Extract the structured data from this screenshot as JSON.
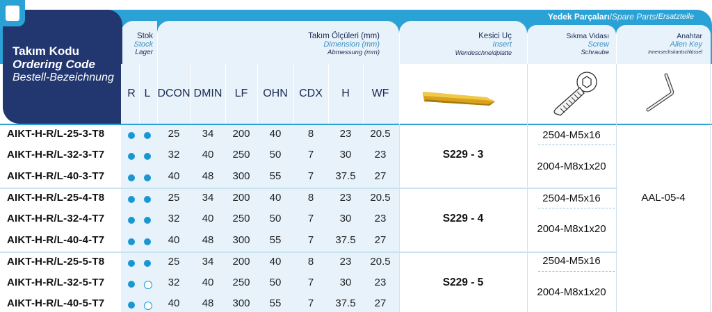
{
  "headers": {
    "code": {
      "tr": "Takım Kodu",
      "en": "Ordering Code",
      "de": "Bestell-Bezeichnung"
    },
    "stock": {
      "tr": "Stok",
      "en": "Stock",
      "de": "Lager"
    },
    "dimension": {
      "tr": "Takım Ölçüleri (mm)",
      "en": "Dimension (mm)",
      "de": "Abmessung (mm)"
    },
    "insert": {
      "tr": "Kesici Uç",
      "en": "Insert",
      "de": "Wendeschneidplatte"
    },
    "spare": {
      "tr": "Yedek Parçaları",
      "sep": " / ",
      "en": "Spare Parts",
      "sep2": " / ",
      "de": "Ersatzteile"
    },
    "screw": {
      "tr": "Sıkma Vidası",
      "en": "Screw",
      "de": "Schraube"
    },
    "key": {
      "tr": "Anahtar",
      "en": "Allen Key",
      "de": "Innensechskantschlüssel"
    }
  },
  "columns": {
    "r": "R",
    "l": "L",
    "dcon": "DCON",
    "dmin": "DMIN",
    "lf": "LF",
    "ohn": "OHN",
    "cdx": "CDX",
    "h": "H",
    "wf": "WF"
  },
  "rows": [
    {
      "code": "AIKT-H-R/L-25-3-T8",
      "r": "full",
      "l": "full",
      "dcon": "25",
      "dmin": "34",
      "lf": "200",
      "ohn": "40",
      "cdx": "8",
      "h": "23",
      "wf": "20.5"
    },
    {
      "code": "AIKT-H-R/L-32-3-T7",
      "r": "full",
      "l": "full",
      "dcon": "32",
      "dmin": "40",
      "lf": "250",
      "ohn": "50",
      "cdx": "7",
      "h": "30",
      "wf": "23"
    },
    {
      "code": "AIKT-H-R/L-40-3-T7",
      "r": "full",
      "l": "full",
      "dcon": "40",
      "dmin": "48",
      "lf": "300",
      "ohn": "55",
      "cdx": "7",
      "h": "37.5",
      "wf": "27"
    },
    {
      "code": "AIKT-H-R/L-25-4-T8",
      "r": "full",
      "l": "full",
      "dcon": "25",
      "dmin": "34",
      "lf": "200",
      "ohn": "40",
      "cdx": "8",
      "h": "23",
      "wf": "20.5"
    },
    {
      "code": "AIKT-H-R/L-32-4-T7",
      "r": "full",
      "l": "full",
      "dcon": "32",
      "dmin": "40",
      "lf": "250",
      "ohn": "50",
      "cdx": "7",
      "h": "30",
      "wf": "23"
    },
    {
      "code": "AIKT-H-R/L-40-4-T7",
      "r": "full",
      "l": "full",
      "dcon": "40",
      "dmin": "48",
      "lf": "300",
      "ohn": "55",
      "cdx": "7",
      "h": "37.5",
      "wf": "27"
    },
    {
      "code": "AIKT-H-R/L-25-5-T8",
      "r": "full",
      "l": "full",
      "dcon": "25",
      "dmin": "34",
      "lf": "200",
      "ohn": "40",
      "cdx": "8",
      "h": "23",
      "wf": "20.5"
    },
    {
      "code": "AIKT-H-R/L-32-5-T7",
      "r": "full",
      "l": "empty",
      "dcon": "32",
      "dmin": "40",
      "lf": "250",
      "ohn": "50",
      "cdx": "7",
      "h": "30",
      "wf": "23"
    },
    {
      "code": "AIKT-H-R/L-40-5-T7",
      "r": "full",
      "l": "empty",
      "dcon": "40",
      "dmin": "48",
      "lf": "300",
      "ohn": "55",
      "cdx": "7",
      "h": "37.5",
      "wf": "27"
    }
  ],
  "inserts": [
    "S229 - 3",
    "S229 - 4",
    "S229 - 5"
  ],
  "screws": [
    "2504-M5x16",
    "2004-M8x1x20",
    "2504-M5x16",
    "2004-M8x1x20",
    "2504-M5x16",
    "2004-M8x1x20"
  ],
  "key_value": "AAL-05-4",
  "colors": {
    "navy": "#22366f",
    "teal": "#2aa2d6",
    "light_blue": "#e7f2fa",
    "dot_blue": "#1a97d3",
    "insert_gold": "#d9a21a"
  },
  "icons": [
    "insert-image",
    "screw-image",
    "allen-key-image",
    "corner-tab-icon"
  ]
}
